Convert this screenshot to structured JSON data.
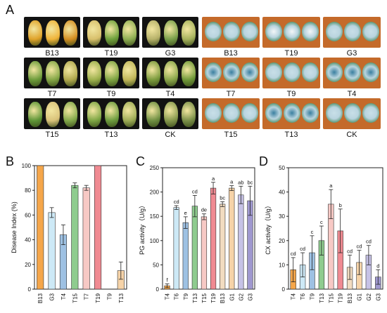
{
  "panel_letters": [
    "A",
    "B",
    "C",
    "D"
  ],
  "photo_panel_left": {
    "rows": [
      [
        {
          "label": "B13"
        },
        {
          "label": "T19"
        },
        {
          "label": "G3"
        }
      ],
      [
        {
          "label": "T7"
        },
        {
          "label": "T9"
        },
        {
          "label": "T4"
        }
      ],
      [
        {
          "label": "T15"
        },
        {
          "label": "T13"
        },
        {
          "label": "CK"
        }
      ]
    ]
  },
  "photo_panel_right": {
    "rows": [
      [
        {
          "label": "B13"
        },
        {
          "label": "T19"
        },
        {
          "label": "G3"
        }
      ],
      [
        {
          "label": "T7"
        },
        {
          "label": "T9"
        },
        {
          "label": "T4"
        }
      ],
      [
        {
          "label": "T15"
        },
        {
          "label": "T13"
        },
        {
          "label": "CK"
        }
      ]
    ]
  },
  "chart_data": [
    {
      "panel": "B",
      "type": "bar",
      "ylabel": "Disease Index (%)",
      "ylim": [
        0,
        100
      ],
      "yticks": [
        0,
        20,
        40,
        60,
        80,
        100
      ],
      "categories": [
        "B13",
        "G3",
        "T4",
        "T15",
        "T7",
        "T19",
        "T9",
        "T13"
      ],
      "values": [
        100,
        62,
        44,
        84,
        82,
        100,
        0,
        15
      ],
      "errors": [
        0,
        4,
        8,
        2,
        2,
        0,
        0,
        7
      ],
      "colors": [
        "#f5a64a",
        "#cde9f6",
        "#9ec1e3",
        "#8fcc8f",
        "#f7c9c5",
        "#f08a92",
        "#f2dcc0",
        "#f6d3a8"
      ],
      "letters": [
        "",
        "",
        "",
        "",
        "",
        "",
        "",
        ""
      ]
    },
    {
      "panel": "C",
      "type": "bar",
      "ylabel": "PG activity（U/g）",
      "ylim": [
        0,
        250
      ],
      "yticks": [
        0,
        50,
        100,
        150,
        200,
        250
      ],
      "categories": [
        "T4",
        "T6",
        "T9",
        "T13",
        "T15",
        "T19",
        "B13",
        "G1",
        "G2",
        "G3"
      ],
      "values": [
        7,
        168,
        137,
        171,
        149,
        208,
        175,
        208,
        194,
        182
      ],
      "errors": [
        4,
        4,
        12,
        22,
        6,
        12,
        5,
        5,
        18,
        30
      ],
      "colors": [
        "#f5a64a",
        "#cde9f6",
        "#9ec1e3",
        "#8fcc8f",
        "#f7c9c5",
        "#f08a92",
        "#f2dcc0",
        "#f6d3a8",
        "#c6c2e6",
        "#9f98cf"
      ],
      "letters": [
        "f",
        "cd",
        "e",
        "cd",
        "de",
        "a",
        "bc",
        "a",
        "ab",
        "bc"
      ]
    },
    {
      "panel": "D",
      "type": "bar",
      "ylabel": "CX activity（U/g）",
      "ylim": [
        0,
        50
      ],
      "yticks": [
        0,
        10,
        20,
        30,
        40,
        50
      ],
      "categories": [
        "T4",
        "T6",
        "T9",
        "T13",
        "T15",
        "T19",
        "B13",
        "G1",
        "G2",
        "G3"
      ],
      "values": [
        8,
        10,
        15,
        20,
        35,
        24,
        9,
        11,
        14,
        5
      ],
      "errors": [
        5,
        5,
        7,
        6,
        6,
        9,
        5,
        5,
        4,
        3
      ],
      "colors": [
        "#f5a64a",
        "#cde9f6",
        "#9ec1e3",
        "#8fcc8f",
        "#f7c9c5",
        "#f08a92",
        "#f2dcc0",
        "#f6d3a8",
        "#c6c2e6",
        "#9f98cf"
      ],
      "letters": [
        "cd",
        "cd",
        "c",
        "c",
        "a",
        "b",
        "cd",
        "cd",
        "cd",
        "d"
      ]
    }
  ]
}
